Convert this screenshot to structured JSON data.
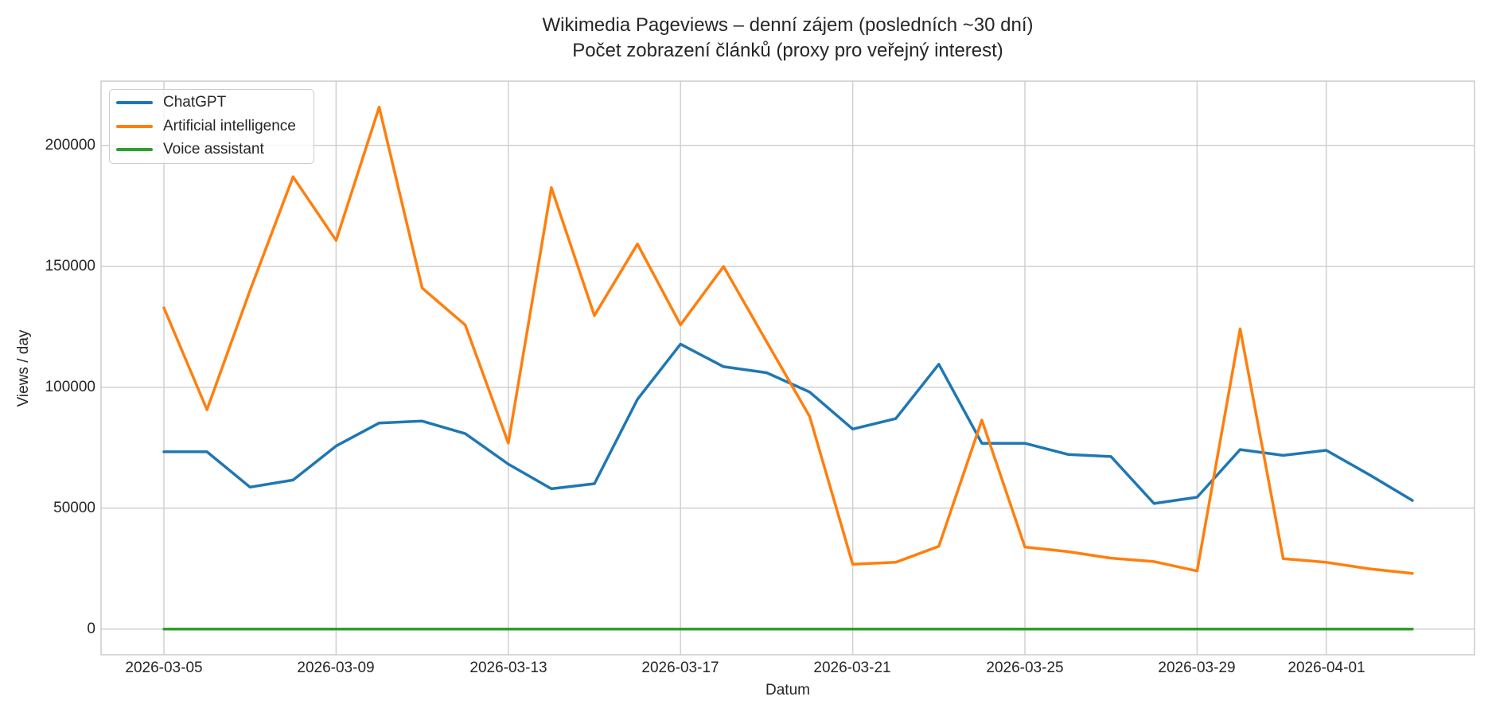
{
  "title": {
    "line1": "Wikimedia Pageviews – denní zájem (posledních ~30 dní)",
    "line2": "Počet zobrazení článků (proxy pro veřejný interest)"
  },
  "axes": {
    "xlabel": "Datum",
    "ylabel": "Views / day",
    "yticks": [
      "0",
      "50000",
      "100000",
      "150000",
      "200000"
    ],
    "xticks": [
      "2026-03-05",
      "2026-03-09",
      "2026-03-13",
      "2026-03-17",
      "2026-03-21",
      "2026-03-25",
      "2026-03-29",
      "2026-04-01"
    ]
  },
  "legend": {
    "items": [
      {
        "label": "ChatGPT",
        "color": "#1f77b4"
      },
      {
        "label": "Artificial intelligence",
        "color": "#ff7f0e"
      },
      {
        "label": "Voice assistant",
        "color": "#2ca02c"
      }
    ]
  },
  "chart_data": {
    "type": "line",
    "title": "Wikimedia Pageviews – denní zájem (posledních ~30 dní) / Počet zobrazení článků (proxy pro veřejný interest)",
    "xlabel": "Datum",
    "ylabel": "Views / day",
    "ylim": [
      -10000,
      225000
    ],
    "grid": true,
    "legend_position": "upper left",
    "x": [
      "2026-03-05",
      "2026-03-06",
      "2026-03-07",
      "2026-03-08",
      "2026-03-09",
      "2026-03-10",
      "2026-03-11",
      "2026-03-12",
      "2026-03-13",
      "2026-03-14",
      "2026-03-15",
      "2026-03-16",
      "2026-03-17",
      "2026-03-18",
      "2026-03-19",
      "2026-03-20",
      "2026-03-21",
      "2026-03-22",
      "2026-03-23",
      "2026-03-24",
      "2026-03-25",
      "2026-03-26",
      "2026-03-27",
      "2026-03-28",
      "2026-03-29",
      "2026-03-30",
      "2026-03-31",
      "2026-04-01",
      "2026-04-02",
      "2026-04-03"
    ],
    "series": [
      {
        "name": "ChatGPT",
        "color": "#1f77b4",
        "values": [
          73300,
          73300,
          58700,
          61600,
          75700,
          85200,
          86000,
          80800,
          68200,
          58000,
          60100,
          95000,
          117800,
          108500,
          106000,
          98000,
          82700,
          87000,
          109500,
          76800,
          76800,
          72200,
          71300,
          51900,
          54500,
          74200,
          71800,
          73900,
          63800,
          53200
        ]
      },
      {
        "name": "Artificial intelligence",
        "color": "#ff7f0e",
        "values": [
          132800,
          90700,
          140000,
          187000,
          160700,
          215800,
          141000,
          125700,
          76900,
          182500,
          129600,
          159200,
          125800,
          149900,
          118800,
          87900,
          26800,
          27600,
          34200,
          86400,
          33900,
          32000,
          29300,
          27900,
          24000,
          124100,
          29100,
          27600,
          24900,
          23000
        ]
      },
      {
        "name": "Voice assistant",
        "color": "#2ca02c",
        "values": [
          0,
          0,
          0,
          0,
          0,
          0,
          0,
          0,
          0,
          0,
          0,
          0,
          0,
          0,
          0,
          0,
          0,
          0,
          0,
          0,
          0,
          0,
          0,
          0,
          0,
          0,
          0,
          0,
          0,
          0
        ]
      }
    ]
  }
}
